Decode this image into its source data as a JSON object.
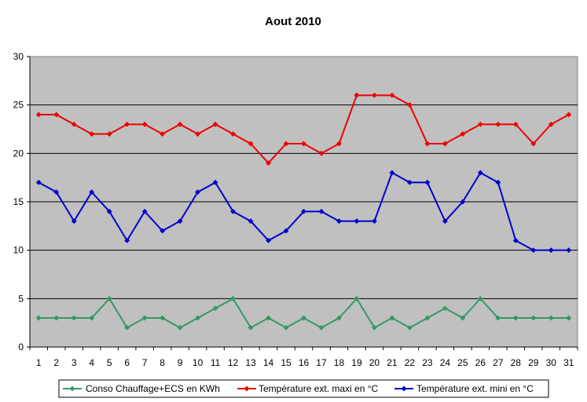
{
  "chart_data": {
    "type": "line",
    "title": "Aout 2010",
    "xlabel": "",
    "ylabel": "",
    "x": [
      1,
      2,
      3,
      4,
      5,
      6,
      7,
      8,
      9,
      10,
      11,
      12,
      13,
      14,
      15,
      16,
      17,
      18,
      19,
      20,
      21,
      22,
      23,
      24,
      25,
      26,
      27,
      28,
      29,
      30,
      31
    ],
    "ylim": [
      0,
      30
    ],
    "yticks": [
      0,
      5,
      10,
      15,
      20,
      25,
      30
    ],
    "grid": true,
    "legend_position": "bottom",
    "series": [
      {
        "name": "Conso Chauffage+ECS en KWh",
        "color": "#339966",
        "values": [
          3,
          3,
          3,
          3,
          5,
          2,
          3,
          3,
          2,
          3,
          4,
          5,
          2,
          3,
          2,
          3,
          2,
          3,
          5,
          2,
          3,
          2,
          3,
          4,
          3,
          5,
          3,
          3,
          3,
          3,
          3
        ]
      },
      {
        "name": "Température ext. maxi en °C",
        "color": "#ee0000",
        "values": [
          24,
          24,
          23,
          22,
          22,
          23,
          23,
          22,
          23,
          22,
          23,
          22,
          21,
          19,
          21,
          21,
          20,
          21,
          26,
          26,
          26,
          25,
          21,
          21,
          22,
          23,
          23,
          23,
          21,
          23,
          24
        ]
      },
      {
        "name": "Température ext. mini en °C",
        "color": "#0000cc",
        "values": [
          17,
          16,
          13,
          16,
          14,
          11,
          14,
          12,
          13,
          16,
          17,
          14,
          13,
          11,
          12,
          14,
          14,
          13,
          13,
          13,
          18,
          17,
          17,
          13,
          15,
          18,
          17,
          11,
          10,
          10,
          10
        ]
      }
    ],
    "plot_background": "#c0c0c0"
  }
}
